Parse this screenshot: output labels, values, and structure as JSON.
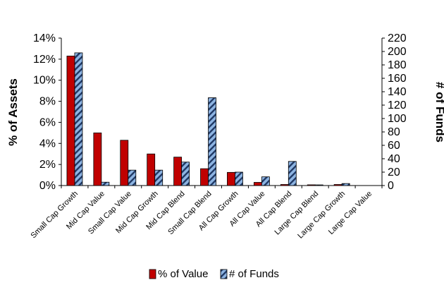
{
  "chart_data": {
    "type": "bar",
    "categories": [
      "Small Cap Growth",
      "Mid Cap Value",
      "Small Cap Value",
      "Mid Cap Growth",
      "Mid Cap Blend",
      "Small Cap Blend",
      "All Cap Growth",
      "All Cap Value",
      "All Cap Blend",
      "Large Cap Blend",
      "Large Cap Growth",
      "Large Cap Value"
    ],
    "series": [
      {
        "name": "% of Value",
        "axis": "left",
        "color": "#c00000",
        "values": [
          12.3,
          5.0,
          4.3,
          3.0,
          2.7,
          1.6,
          1.25,
          0.3,
          0.1,
          0.07,
          0.1,
          0.0
        ]
      },
      {
        "name": "# of Funds",
        "axis": "right",
        "color": "#8db4e2",
        "pattern": "diagonal-stripes",
        "values": [
          198,
          5,
          23,
          23,
          35,
          131,
          20,
          13,
          36,
          1,
          3,
          0
        ]
      }
    ],
    "ylabel": "% of Assets",
    "y2label": "# of Funds",
    "ylim": [
      0,
      14
    ],
    "y2lim": [
      0,
      220
    ],
    "yticks": [
      "0%",
      "2%",
      "4%",
      "6%",
      "8%",
      "10%",
      "12%",
      "14%"
    ],
    "y2ticks": [
      "0",
      "20",
      "40",
      "60",
      "80",
      "100",
      "120",
      "140",
      "160",
      "180",
      "200",
      "220"
    ],
    "grid": false,
    "legend_position": "bottom"
  }
}
